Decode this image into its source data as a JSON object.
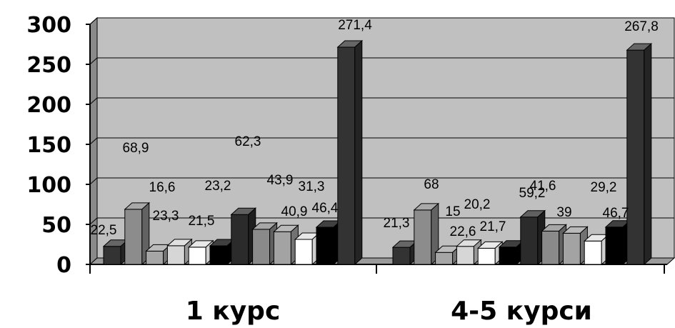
{
  "chart_data": {
    "type": "bar",
    "categories": [
      "1 курс",
      "4-5 курси"
    ],
    "series": [
      {
        "values": [
          22.5,
          21.3
        ],
        "labels": [
          "22,5",
          "21,3"
        ],
        "color": "#333333"
      },
      {
        "values": [
          68.9,
          68
        ],
        "labels": [
          "68,9",
          "68"
        ],
        "color": "#8c8c8c"
      },
      {
        "values": [
          16.6,
          15
        ],
        "labels": [
          "16,6",
          "15"
        ],
        "color": "#a6a6a6"
      },
      {
        "values": [
          23.3,
          22.6
        ],
        "labels": [
          "23,3",
          "22,6"
        ],
        "color": "#d6d6d6"
      },
      {
        "values": [
          21.5,
          20.2
        ],
        "labels": [
          "21,5",
          "20,2"
        ],
        "color": "#ffffff"
      },
      {
        "values": [
          23.2,
          21.7
        ],
        "labels": [
          "23,2",
          "21,7"
        ],
        "color": "#000000"
      },
      {
        "values": [
          62.3,
          59.2
        ],
        "labels": [
          "62,3",
          "59,2"
        ],
        "color": "#2b2b2b"
      },
      {
        "values": [
          43.9,
          41.6
        ],
        "labels": [
          "43,9",
          "41,6"
        ],
        "color": "#8a8a8a"
      },
      {
        "values": [
          40.9,
          39
        ],
        "labels": [
          "40,9",
          "39"
        ],
        "color": "#a3a3a3"
      },
      {
        "values": [
          31.3,
          29.2
        ],
        "labels": [
          "31,3",
          "29,2"
        ],
        "color": "#ffffff"
      },
      {
        "values": [
          46.4,
          46.7
        ],
        "labels": [
          "46,4",
          "46,7"
        ],
        "color": "#000000"
      },
      {
        "values": [
          271.4,
          267.8
        ],
        "labels": [
          "271,4",
          "267,8"
        ],
        "color": "#333333"
      }
    ],
    "yticks": [
      "0",
      "50",
      "100",
      "150",
      "200",
      "250",
      "300"
    ],
    "ylim": [
      0,
      300
    ],
    "grid": true,
    "plot_background": "#c0c0c0",
    "style": "3d"
  }
}
